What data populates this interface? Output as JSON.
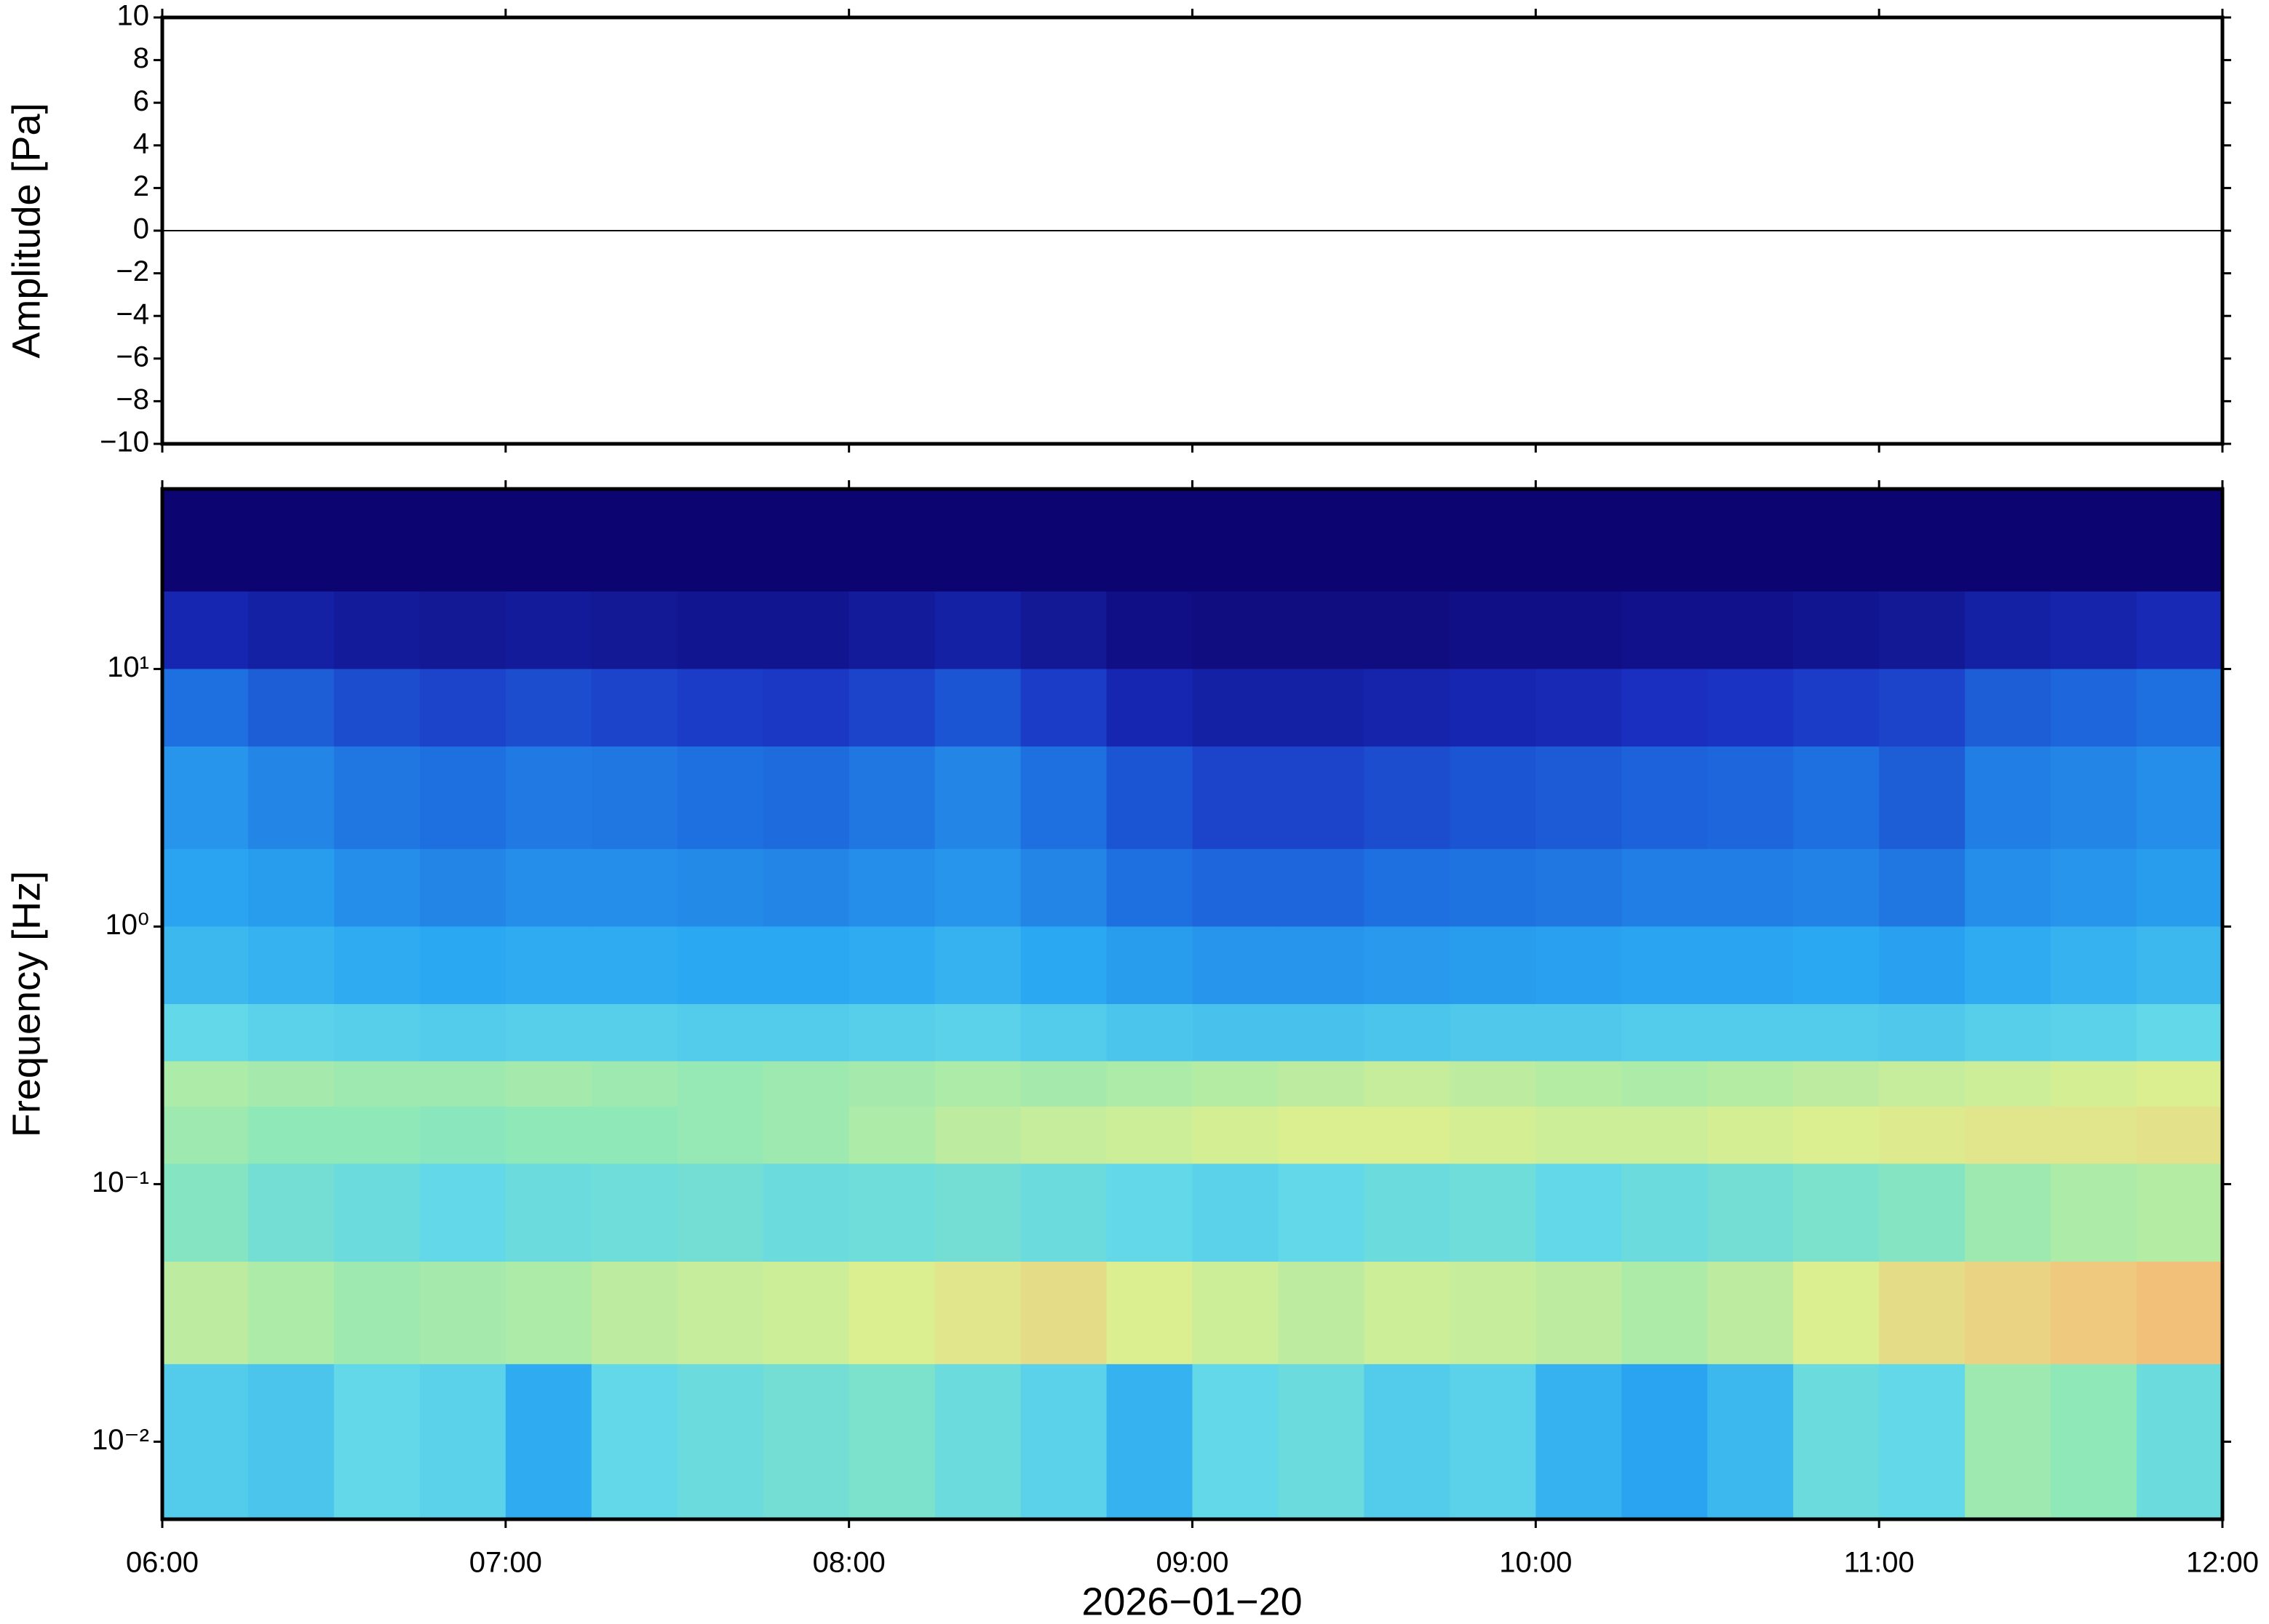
{
  "chart_data": [
    {
      "type": "line",
      "ylabel": "Amplitude [Pa]",
      "x": [
        6,
        6.5,
        7,
        7.5,
        8,
        8.5,
        9,
        9.5,
        10,
        10.5,
        11,
        11.5,
        12
      ],
      "values": [
        0,
        0,
        0,
        0,
        0,
        0,
        0,
        0,
        0,
        0,
        0,
        0,
        0
      ],
      "color": "#000000",
      "xlim": [
        6,
        12
      ],
      "xticks": [
        6,
        7,
        8,
        9,
        10,
        11,
        12
      ],
      "ylim": [
        -10,
        10
      ],
      "yticks": [
        {
          "value": -10,
          "label": "−10"
        },
        {
          "value": -8,
          "label": "−8"
        },
        {
          "value": -6,
          "label": "−6"
        },
        {
          "value": -4,
          "label": "−4"
        },
        {
          "value": -2,
          "label": "−2"
        },
        0,
        2,
        4,
        6,
        8,
        10
      ]
    },
    {
      "type": "heatmap",
      "ylabel": "Frequency [Hz]",
      "xlabel": "2026−01−20",
      "xlim": [
        6,
        12
      ],
      "xticks": [
        {
          "value": 6,
          "label": "06:00"
        },
        {
          "value": 7,
          "label": "07:00"
        },
        {
          "value": 8,
          "label": "08:00"
        },
        {
          "value": 9,
          "label": "09:00"
        },
        {
          "value": 10,
          "label": "10:00"
        },
        {
          "value": 11,
          "label": "11:00"
        },
        {
          "value": 12,
          "label": "12:00"
        }
      ],
      "ylim": [
        0.005,
        50
      ],
      "log_y": true,
      "yticks": [
        {
          "value": 0.01,
          "label": "10⁻²"
        },
        {
          "value": 0.1,
          "label": "10⁻¹"
        },
        {
          "value": 1,
          "label": "10⁰"
        },
        {
          "value": 10,
          "label": "10¹"
        }
      ],
      "time_bins": [
        6,
        6.25,
        6.5,
        6.75,
        7,
        7.25,
        7.5,
        7.75,
        8,
        8.25,
        8.5,
        8.75,
        9,
        9.25,
        9.5,
        9.75,
        10,
        10.25,
        10.5,
        10.75,
        11,
        11.25,
        11.5,
        11.75,
        12
      ],
      "freq_bins": [
        50,
        20,
        10,
        5,
        2,
        1,
        0.5,
        0.3,
        0.2,
        0.12,
        0.05,
        0.02,
        0.005
      ],
      "colormap": {
        "stops": [
          0,
          0.15,
          0.3,
          0.45,
          0.6,
          0.7,
          0.8,
          0.9,
          1
        ],
        "colors": [
          "#0c0470",
          "#1a2fc0",
          "#1e6fe0",
          "#2ba8f2",
          "#62d8e8",
          "#8ee8b8",
          "#dcef90",
          "#f3c07a",
          "#f09060"
        ]
      },
      "power": [
        [
          0,
          0,
          0,
          0,
          0,
          0,
          0,
          0,
          0,
          0,
          0,
          0,
          0,
          0,
          0,
          0,
          0,
          0,
          0,
          0,
          0,
          0,
          0,
          0
        ],
        [
          0.12,
          0.1,
          0.08,
          0.07,
          0.08,
          0.07,
          0.06,
          0.06,
          0.08,
          0.1,
          0.07,
          0.04,
          0.03,
          0.03,
          0.03,
          0.04,
          0.04,
          0.05,
          0.05,
          0.06,
          0.07,
          0.1,
          0.11,
          0.13
        ],
        [
          0.3,
          0.26,
          0.22,
          0.2,
          0.22,
          0.2,
          0.18,
          0.17,
          0.2,
          0.24,
          0.18,
          0.12,
          0.1,
          0.1,
          0.11,
          0.12,
          0.13,
          0.15,
          0.16,
          0.18,
          0.2,
          0.26,
          0.28,
          0.3
        ],
        [
          0.4,
          0.36,
          0.32,
          0.3,
          0.33,
          0.32,
          0.3,
          0.29,
          0.32,
          0.36,
          0.3,
          0.24,
          0.2,
          0.2,
          0.22,
          0.24,
          0.25,
          0.27,
          0.28,
          0.3,
          0.26,
          0.34,
          0.36,
          0.38
        ],
        [
          0.44,
          0.42,
          0.38,
          0.36,
          0.38,
          0.38,
          0.37,
          0.36,
          0.38,
          0.4,
          0.36,
          0.3,
          0.28,
          0.28,
          0.3,
          0.31,
          0.32,
          0.34,
          0.34,
          0.35,
          0.32,
          0.38,
          0.4,
          0.42
        ],
        [
          0.5,
          0.48,
          0.46,
          0.45,
          0.46,
          0.46,
          0.45,
          0.45,
          0.46,
          0.48,
          0.45,
          0.42,
          0.4,
          0.4,
          0.41,
          0.42,
          0.43,
          0.44,
          0.44,
          0.45,
          0.43,
          0.46,
          0.48,
          0.5
        ],
        [
          0.6,
          0.58,
          0.57,
          0.56,
          0.57,
          0.57,
          0.56,
          0.56,
          0.57,
          0.58,
          0.56,
          0.54,
          0.53,
          0.53,
          0.54,
          0.55,
          0.55,
          0.56,
          0.56,
          0.56,
          0.55,
          0.57,
          0.58,
          0.6
        ],
        [
          0.74,
          0.73,
          0.72,
          0.72,
          0.73,
          0.72,
          0.71,
          0.72,
          0.73,
          0.74,
          0.73,
          0.74,
          0.75,
          0.76,
          0.77,
          0.76,
          0.75,
          0.74,
          0.75,
          0.76,
          0.77,
          0.78,
          0.79,
          0.8
        ],
        [
          0.72,
          0.7,
          0.7,
          0.69,
          0.7,
          0.7,
          0.71,
          0.72,
          0.74,
          0.76,
          0.77,
          0.78,
          0.79,
          0.8,
          0.8,
          0.79,
          0.78,
          0.78,
          0.79,
          0.8,
          0.81,
          0.82,
          0.82,
          0.83
        ],
        [
          0.68,
          0.64,
          0.62,
          0.6,
          0.62,
          0.63,
          0.64,
          0.62,
          0.63,
          0.64,
          0.62,
          0.6,
          0.58,
          0.6,
          0.62,
          0.63,
          0.6,
          0.62,
          0.64,
          0.66,
          0.68,
          0.72,
          0.74,
          0.75
        ],
        [
          0.76,
          0.74,
          0.72,
          0.73,
          0.74,
          0.76,
          0.77,
          0.78,
          0.8,
          0.82,
          0.84,
          0.8,
          0.78,
          0.76,
          0.78,
          0.77,
          0.76,
          0.74,
          0.76,
          0.8,
          0.84,
          0.86,
          0.88,
          0.9
        ],
        [
          0.56,
          0.54,
          0.6,
          0.58,
          0.46,
          0.6,
          0.62,
          0.64,
          0.66,
          0.62,
          0.58,
          0.48,
          0.6,
          0.62,
          0.56,
          0.58,
          0.48,
          0.44,
          0.5,
          0.62,
          0.6,
          0.72,
          0.7,
          0.62
        ]
      ]
    }
  ]
}
